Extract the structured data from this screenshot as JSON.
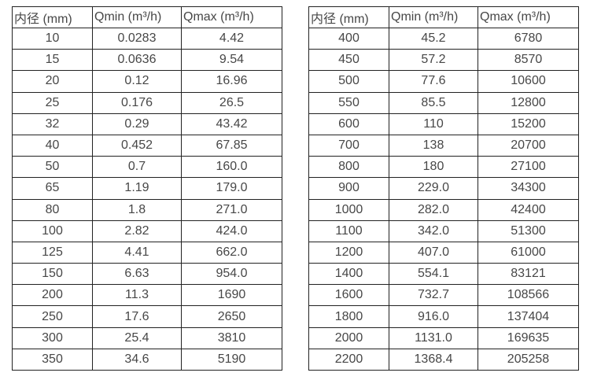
{
  "colors": {
    "background": "#ffffff",
    "border": "#222222",
    "text": "#474747"
  },
  "tables": [
    {
      "name": "small-diameter-flow-table",
      "headers": [
        "内径 (mm)",
        "Qmin (m³/h)",
        "Qmax (m³/h)"
      ],
      "rows": [
        [
          "10",
          "0.0283",
          "4.42"
        ],
        [
          "15",
          "0.0636",
          "9.54"
        ],
        [
          "20",
          "0.12",
          "16.96"
        ],
        [
          "25",
          "0.176",
          "26.5"
        ],
        [
          "32",
          "0.29",
          "43.42"
        ],
        [
          "40",
          "0.452",
          "67.85"
        ],
        [
          "50",
          "0.7",
          "160.0"
        ],
        [
          "65",
          "1.19",
          "179.0"
        ],
        [
          "80",
          "1.8",
          "271.0"
        ],
        [
          "100",
          "2.82",
          "424.0"
        ],
        [
          "125",
          "4.41",
          "662.0"
        ],
        [
          "150",
          "6.63",
          "954.0"
        ],
        [
          "200",
          "11.3",
          "1690"
        ],
        [
          "250",
          "17.6",
          "2650"
        ],
        [
          "300",
          "25.4",
          "3810"
        ],
        [
          "350",
          "34.6",
          "5190"
        ]
      ]
    },
    {
      "name": "large-diameter-flow-table",
      "headers": [
        "内径 (mm)",
        "Qmin (m³/h)",
        "Qmax (m³/h)"
      ],
      "rows": [
        [
          "400",
          "45.2",
          "6780"
        ],
        [
          "450",
          "57.2",
          "8570"
        ],
        [
          "500",
          "77.6",
          "10600"
        ],
        [
          "550",
          "85.5",
          "12800"
        ],
        [
          "600",
          "110",
          "15200"
        ],
        [
          "700",
          "138",
          "20700"
        ],
        [
          "800",
          "180",
          "27100"
        ],
        [
          "900",
          "229.0",
          "34300"
        ],
        [
          "1000",
          "282.0",
          "42400"
        ],
        [
          "1100",
          "342.0",
          "51300"
        ],
        [
          "1200",
          "407.0",
          "61000"
        ],
        [
          "1400",
          "554.1",
          "83121"
        ],
        [
          "1600",
          "732.7",
          "108566"
        ],
        [
          "1800",
          "916.0",
          "137404"
        ],
        [
          "2000",
          "1131.0",
          "169635"
        ],
        [
          "2200",
          "1368.4",
          "205258"
        ]
      ]
    }
  ]
}
